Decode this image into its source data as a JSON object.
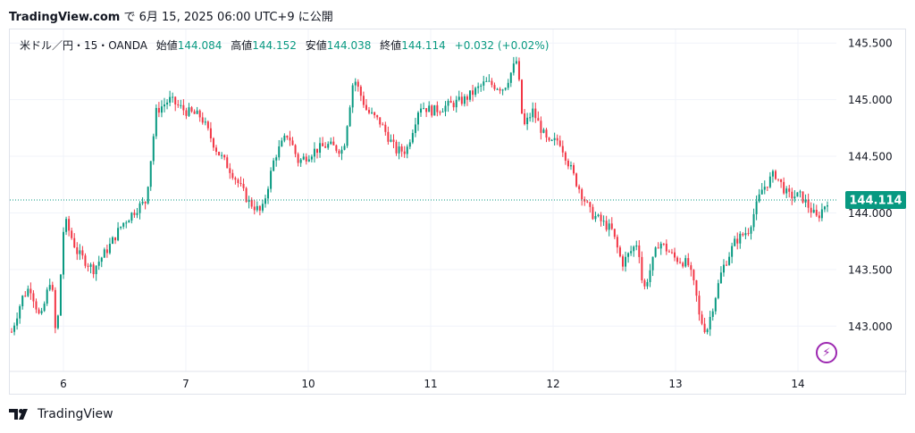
{
  "header": {
    "site": "TradingView.com",
    "date_text": "で 6月 15, 2025 06:00 UTC+9 に公開"
  },
  "legend": {
    "symbol": "米ドル／円・15・OANDA",
    "open_label": "始値",
    "open": "144.084",
    "high_label": "高値",
    "high": "144.152",
    "low_label": "安値",
    "low": "144.038",
    "close_label": "終値",
    "close": "144.114",
    "change": "+0.032 (+0.02%)"
  },
  "footer": {
    "brand": "TradingView"
  },
  "colors": {
    "up": "#089981",
    "down": "#f23645",
    "accent_badge": "#089981",
    "grid": "#f0f3fa"
  },
  "chart_data": {
    "type": "candlestick",
    "symbol": "USDJPY",
    "interval": "15",
    "x_tick_labels": [
      "6",
      "7",
      "10",
      "11",
      "12",
      "13",
      "14"
    ],
    "y_tick_labels": [
      "143.000",
      "143.500",
      "144.000",
      "144.500",
      "145.000",
      "145.500"
    ],
    "ylim": [
      142.6,
      145.62
    ],
    "last_price": 144.114,
    "last_price_label": "144.114",
    "grid": true,
    "path": [
      [
        0,
        142.95
      ],
      [
        0.2,
        143.25
      ],
      [
        0.35,
        143.35
      ],
      [
        0.55,
        143.05
      ],
      [
        0.75,
        143.45
      ],
      [
        0.85,
        142.85
      ],
      [
        1.0,
        143.95
      ],
      [
        1.25,
        143.65
      ],
      [
        1.55,
        143.5
      ],
      [
        1.85,
        143.7
      ],
      [
        2.1,
        143.9
      ],
      [
        2.4,
        144.05
      ],
      [
        2.55,
        144.1
      ],
      [
        2.75,
        144.9
      ],
      [
        3.0,
        145.0
      ],
      [
        3.3,
        144.9
      ],
      [
        3.6,
        144.85
      ],
      [
        3.9,
        144.55
      ],
      [
        4.2,
        144.35
      ],
      [
        4.5,
        144.1
      ],
      [
        4.75,
        144.0
      ],
      [
        5.0,
        144.5
      ],
      [
        5.25,
        144.7
      ],
      [
        5.45,
        144.45
      ],
      [
        5.75,
        144.55
      ],
      [
        6.0,
        144.6
      ],
      [
        6.3,
        144.55
      ],
      [
        6.5,
        145.2
      ],
      [
        6.75,
        144.9
      ],
      [
        7.0,
        144.8
      ],
      [
        7.3,
        144.55
      ],
      [
        7.5,
        144.55
      ],
      [
        7.75,
        144.95
      ],
      [
        8.0,
        144.9
      ],
      [
        8.3,
        144.95
      ],
      [
        8.6,
        145.0
      ],
      [
        9.0,
        145.15
      ],
      [
        9.35,
        145.1
      ],
      [
        9.6,
        145.35
      ],
      [
        9.72,
        144.75
      ],
      [
        9.9,
        144.9
      ],
      [
        10.2,
        144.6
      ],
      [
        10.4,
        144.65
      ],
      [
        10.7,
        144.3
      ],
      [
        11.0,
        144.0
      ],
      [
        11.4,
        143.85
      ],
      [
        11.6,
        143.55
      ],
      [
        11.9,
        143.75
      ],
      [
        12.0,
        143.3
      ],
      [
        12.3,
        143.75
      ],
      [
        12.6,
        143.6
      ],
      [
        12.85,
        143.55
      ],
      [
        13.0,
        143.3
      ],
      [
        13.05,
        143.1
      ],
      [
        13.2,
        142.95
      ],
      [
        13.5,
        143.5
      ],
      [
        13.75,
        143.75
      ],
      [
        14.0,
        143.85
      ],
      [
        14.25,
        144.2
      ],
      [
        14.5,
        144.35
      ],
      [
        14.75,
        144.15
      ],
      [
        15.0,
        144.15
      ],
      [
        15.3,
        143.95
      ],
      [
        15.5,
        144.11
      ]
    ]
  }
}
